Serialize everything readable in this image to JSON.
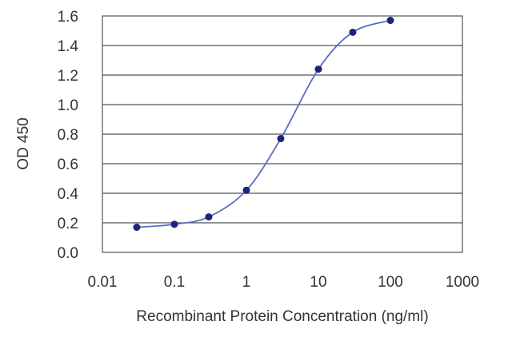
{
  "chart_data": {
    "type": "line",
    "title": "",
    "xlabel": "Recombinant Protein Concentration (ng/ml)",
    "ylabel": "OD 450",
    "x_scale": "log",
    "xlim": [
      0.01,
      1000
    ],
    "ylim": [
      0.0,
      1.6
    ],
    "grid": "horizontal",
    "x_ticks": [
      0.01,
      0.1,
      1,
      10,
      100,
      1000
    ],
    "x_tick_labels": [
      "0.01",
      "0.1",
      "1",
      "10",
      "100",
      "1000"
    ],
    "y_ticks": [
      0.0,
      0.2,
      0.4,
      0.6,
      0.8,
      1.0,
      1.2,
      1.4,
      1.6
    ],
    "y_tick_labels": [
      "0.0",
      "0.2",
      "0.4",
      "0.6",
      "0.8",
      "1.0",
      "1.2",
      "1.4",
      "1.6"
    ],
    "series": [
      {
        "x": [
          0.03,
          0.1,
          0.3,
          1,
          3,
          10,
          30,
          100
        ],
        "y": [
          0.17,
          0.19,
          0.24,
          0.42,
          0.77,
          1.24,
          1.49,
          1.57
        ],
        "color": "#1a237e",
        "curve_color": "#5c6bc0"
      }
    ]
  }
}
